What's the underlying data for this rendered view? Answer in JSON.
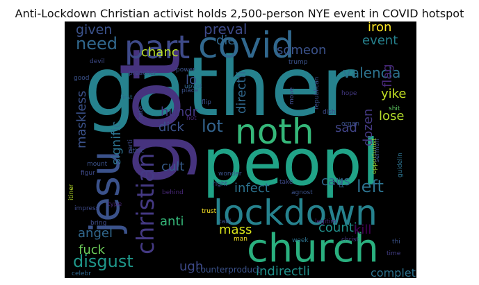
{
  "title": "Anti-Lockdown Christian activist holds 2,500-person NYE event in COVID hotspot",
  "words": [
    {
      "text": "gather",
      "color": "#26828e"
    },
    {
      "text": "peopl",
      "color": "#20a387"
    },
    {
      "text": "got",
      "color": "#46337e"
    },
    {
      "text": "covid",
      "color": "#31688e"
    },
    {
      "text": "part",
      "color": "#3e4a89"
    },
    {
      "text": "church",
      "color": "#2ab07f"
    },
    {
      "text": "lockdown",
      "color": "#26828e"
    },
    {
      "text": "noth",
      "color": "#35b779"
    },
    {
      "text": "jesu",
      "color": "#3b528b"
    },
    {
      "text": "christian",
      "color": "#443983"
    },
    {
      "text": "disgust",
      "color": "#1f988b"
    },
    {
      "text": "left",
      "color": "#2c728e"
    },
    {
      "text": "lot",
      "color": "#33638d"
    },
    {
      "text": "preval",
      "color": "#3e4a89"
    },
    {
      "text": "valencia",
      "color": "#2c728e"
    },
    {
      "text": "need",
      "color": "#31688e"
    },
    {
      "text": "given",
      "color": "#3b528b"
    },
    {
      "text": "chanc",
      "color": "#b8de29"
    },
    {
      "text": "die",
      "color": "#31688e"
    },
    {
      "text": "someon",
      "color": "#3b528b"
    },
    {
      "text": "iron",
      "color": "#fde725"
    },
    {
      "text": "event",
      "color": "#26828e"
    },
    {
      "text": "flag",
      "color": "#482878"
    },
    {
      "text": "yike",
      "color": "#c2df23"
    },
    {
      "text": "lose",
      "color": "#b5de2b"
    },
    {
      "text": "dozen",
      "color": "#443983"
    },
    {
      "text": "sad",
      "color": "#414487"
    },
    {
      "text": "directli",
      "color": "#31688e"
    },
    {
      "text": "lo",
      "color": "#3b528b"
    },
    {
      "text": "hundr",
      "color": "#443983"
    },
    {
      "text": "dick",
      "color": "#3b528b"
    },
    {
      "text": "signific",
      "color": "#2c728e"
    },
    {
      "text": "maskless",
      "color": "#3b528b"
    },
    {
      "text": "cult",
      "color": "#365c8d"
    },
    {
      "text": "caus",
      "color": "#31688e"
    },
    {
      "text": "infect",
      "color": "#2c728e"
    },
    {
      "text": "anti",
      "color": "#35b779"
    },
    {
      "text": "mass",
      "color": "#d8e219"
    },
    {
      "text": "counti",
      "color": "#21918c"
    },
    {
      "text": "kill",
      "color": "#440154"
    },
    {
      "text": "angel",
      "color": "#31688e"
    },
    {
      "text": "fuck",
      "color": "#6ccd5a"
    },
    {
      "text": "ugh",
      "color": "#3e4a89"
    },
    {
      "text": "indirectli",
      "color": "#21918c"
    },
    {
      "text": "complet",
      "color": "#2c728e"
    },
    {
      "text": "counterproduct",
      "color": "#3b528b"
    },
    {
      "text": "time",
      "color": "#433e85"
    },
    {
      "text": "thi",
      "color": "#3b528b"
    },
    {
      "text": "christ",
      "color": "#443983"
    },
    {
      "text": "man",
      "color": "#fde725"
    },
    {
      "text": "week",
      "color": "#2c728e"
    },
    {
      "text": "legitim",
      "color": "#482878"
    },
    {
      "text": "trust",
      "color": "#fde725"
    },
    {
      "text": "tabl",
      "color": "#3b528b"
    },
    {
      "text": "bring",
      "color": "#3e4a89"
    },
    {
      "text": "celebr",
      "color": "#31688e"
    },
    {
      "text": "impress",
      "color": "#3e4a89"
    },
    {
      "text": "type",
      "color": "#482878"
    },
    {
      "text": "behind",
      "color": "#482878"
    },
    {
      "text": "right",
      "color": "#3b528b"
    },
    {
      "text": "take",
      "color": "#3e4a89"
    },
    {
      "text": "agnost",
      "color": "#3b528b"
    },
    {
      "text": "per",
      "color": "#31688e"
    },
    {
      "text": "wonder",
      "color": "#3b528b"
    },
    {
      "text": "opportunist",
      "color": "#a0da39"
    },
    {
      "text": "sermon",
      "color": "#3b528b"
    },
    {
      "text": "guidelin",
      "color": "#2c728e"
    },
    {
      "text": "shit",
      "color": "#5ec962"
    },
    {
      "text": "dish",
      "color": "#3e4a89"
    },
    {
      "text": "organ",
      "color": "#3b528b"
    },
    {
      "text": "hope",
      "color": "#443983"
    },
    {
      "text": "republican",
      "color": "#3b528b"
    },
    {
      "text": "move",
      "color": "#3e4a89"
    },
    {
      "text": "hot",
      "color": "#482878"
    },
    {
      "text": "flip",
      "color": "#3b528b"
    },
    {
      "text": "upvot",
      "color": "#31688e"
    },
    {
      "text": "place",
      "color": "#3b528b"
    },
    {
      "text": "first",
      "color": "#2c728e"
    },
    {
      "text": "hate",
      "color": "#3e4a89"
    },
    {
      "text": "parti",
      "color": "#3e4a89"
    },
    {
      "text": "ethic",
      "color": "#3b528b"
    },
    {
      "text": "figur",
      "color": "#3e4a89"
    },
    {
      "text": "mount",
      "color": "#3b528b"
    },
    {
      "text": "itiner",
      "color": "#b8de29"
    },
    {
      "text": "preacher",
      "color": "#3e4a89"
    },
    {
      "text": "power",
      "color": "#3b528b"
    },
    {
      "text": "trump",
      "color": "#3b528b"
    },
    {
      "text": "devil",
      "color": "#3e4a89"
    },
    {
      "text": "good",
      "color": "#3b528b"
    }
  ]
}
